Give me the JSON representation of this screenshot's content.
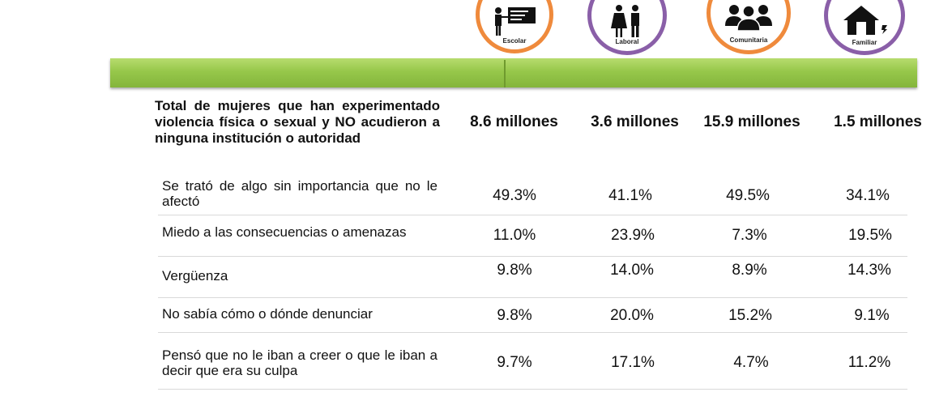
{
  "icons": [
    {
      "name": "escolar",
      "label": "Escolar",
      "color": "#ef8a3c",
      "icon": "teacher-board-icon"
    },
    {
      "name": "laboral",
      "label": "Laboral",
      "color": "#8a5fa8",
      "icon": "couple-icon"
    },
    {
      "name": "comunitaria",
      "label": "Comunitaria",
      "color": "#ef8a3c",
      "icon": "group-people-icon"
    },
    {
      "name": "familiar",
      "label": "Familiar",
      "color": "#8a5fa8",
      "icon": "house-icon"
    }
  ],
  "accent_green": "#96c74a",
  "header": {
    "label": "Total de mujeres que han experimentado violencia física o sexual y NO acudieron a ninguna institución o autoridad",
    "totals": [
      "8.6 millones",
      "3.6 millones",
      "15.9 millones",
      "1.5 millones"
    ]
  },
  "rows": [
    {
      "label": "Se trató de algo sin importancia que no le afectó",
      "values": [
        "49.3%",
        "41.1%",
        "49.5%",
        "34.1%"
      ]
    },
    {
      "label": "Miedo a las consecuencias o amenazas",
      "values": [
        "11.0%",
        "23.9%",
        "7.3%",
        "19.5%"
      ]
    },
    {
      "label": "Vergüenza",
      "values": [
        "9.8%",
        "14.0%",
        "8.9%",
        "14.3%"
      ]
    },
    {
      "label": "No sabía cómo o dónde denunciar",
      "values": [
        "9.8%",
        "20.0%",
        "15.2%",
        "9.1%"
      ]
    },
    {
      "label": "Pensó que no le iban a creer o que le iban a decir que era su culpa",
      "values": [
        "9.7%",
        "17.1%",
        "4.7%",
        "11.2%"
      ]
    }
  ]
}
